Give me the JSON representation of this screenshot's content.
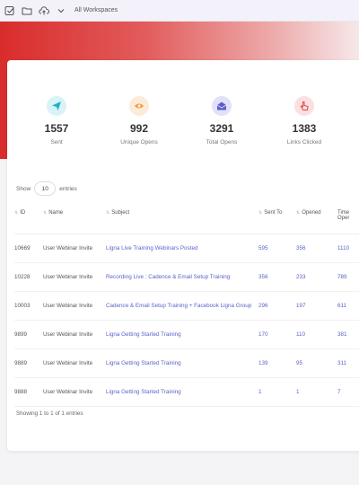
{
  "topbar": {
    "workspace_label": "All Workspaces",
    "icons": [
      "checkbox-icon",
      "folder-icon",
      "upload-cloud-icon",
      "chevron-down-icon"
    ]
  },
  "stats": [
    {
      "value": "1557",
      "label": "Sent",
      "icon": "send-icon",
      "bg": "#d9f3f6",
      "color": "#19b3c8"
    },
    {
      "value": "992",
      "label": "Unique Opens",
      "icon": "eye-icon",
      "bg": "#fdebd9",
      "color": "#f0983a"
    },
    {
      "value": "3291",
      "label": "Total Opens",
      "icon": "envelope-open-icon",
      "bg": "#e1e1f7",
      "color": "#5d5fcf"
    },
    {
      "value": "1383",
      "label": "Links Clicked",
      "icon": "pointer-icon",
      "bg": "#fbdfe1",
      "color": "#e0464c"
    }
  ],
  "table_controls": {
    "show_label": "Show",
    "page_size": "10",
    "entries_label": "entries"
  },
  "table": {
    "headers": [
      "ID",
      "Name",
      "Subject",
      "Sent To",
      "Opened",
      "Time Oper"
    ],
    "rows": [
      {
        "id": "10669",
        "name": "User Webinar Invite",
        "subject": "Ligna Live Training Webinars Posted",
        "sent_to": "595",
        "opened": "356",
        "time_opened": "1110"
      },
      {
        "id": "10228",
        "name": "User Webinar Invite",
        "subject": "Recording Live : Cadence & Email Setup Training",
        "sent_to": "356",
        "opened": "233",
        "time_opened": "789"
      },
      {
        "id": "10003",
        "name": "User Webinar Invite",
        "subject": "Cadence & Email Setup Training + Facebook Ligna Group",
        "sent_to": "296",
        "opened": "197",
        "time_opened": "611"
      },
      {
        "id": "9899",
        "name": "User Webinar Invite",
        "subject": "Ligna Getting Started Training",
        "sent_to": "170",
        "opened": "110",
        "time_opened": "381"
      },
      {
        "id": "9889",
        "name": "User Webinar Invite",
        "subject": "Ligna Getting Started Training",
        "sent_to": "139",
        "opened": "95",
        "time_opened": "311"
      },
      {
        "id": "9888",
        "name": "User Webinar Invite",
        "subject": "Ligna Getting Started Training",
        "sent_to": "1",
        "opened": "1",
        "time_opened": "7"
      }
    ]
  },
  "footer": {
    "info": "Showing 1 to 1 of 1 entries"
  },
  "colors": {
    "banner_start": "#d92c2c",
    "link": "#5b63c7"
  }
}
